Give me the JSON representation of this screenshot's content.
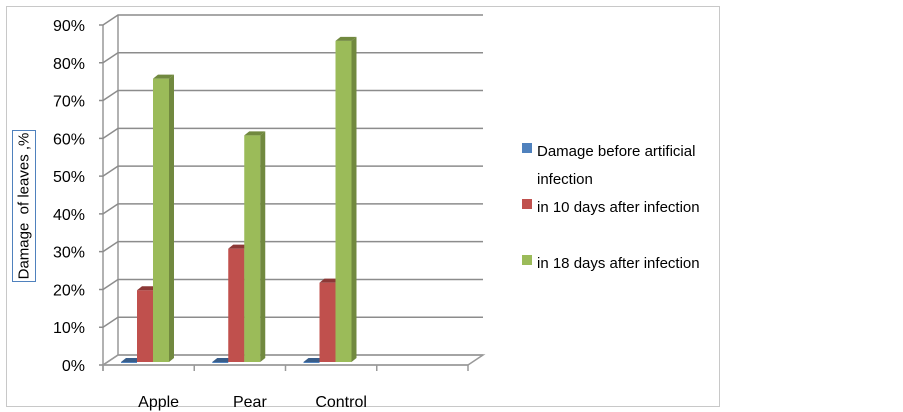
{
  "chart_data": {
    "type": "bar",
    "3d": true,
    "title": "",
    "xlabel": "",
    "ylabel": "Damage  of leaves ,%",
    "categories": [
      "Apple",
      "Pear",
      "Control"
    ],
    "series": [
      {
        "name": "Damage before artificial infection",
        "values": [
          0,
          0,
          0
        ],
        "color": "#4f81bd"
      },
      {
        "name": "in 10 days after infection",
        "values": [
          19,
          30,
          21
        ],
        "color": "#c0504d"
      },
      {
        "name": "in 18 days after infection",
        "values": [
          75,
          60,
          85
        ],
        "color": "#9bbb59"
      }
    ],
    "ylim": [
      0,
      90
    ],
    "yticks": [
      "0%",
      "10%",
      "20%",
      "30%",
      "40%",
      "50%",
      "60%",
      "70%",
      "80%",
      "90%"
    ],
    "grid": true,
    "legend": "right"
  },
  "legend": {
    "line1": "Damage before artificial",
    "line2": "infection",
    "item2": "in 10 days after infection",
    "item3": "in 18 days after infection"
  }
}
